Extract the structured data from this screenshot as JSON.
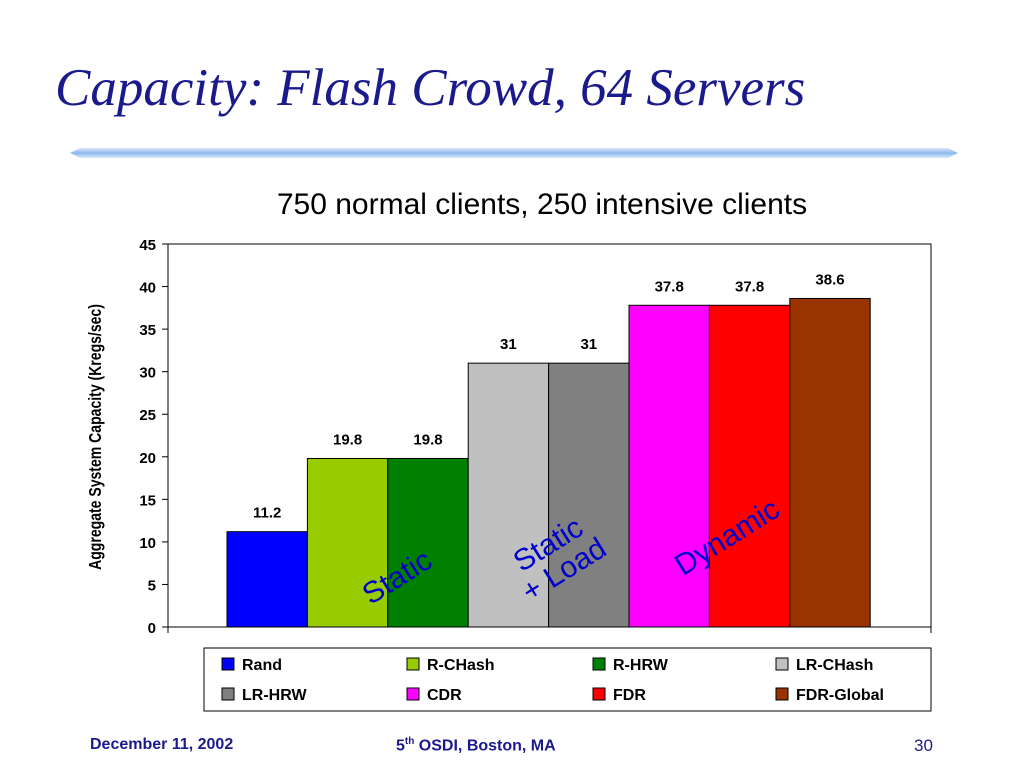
{
  "slide": {
    "title": "Capacity: Flash Crowd, 64 Servers",
    "subtitle": "750 normal clients, 250 intensive clients"
  },
  "chart_data": {
    "type": "bar",
    "ylabel": "Aggregate System Capacity (Kregs/sec)",
    "ylim": [
      0,
      45
    ],
    "yticks": [
      0,
      5,
      10,
      15,
      20,
      25,
      30,
      35,
      40,
      45
    ],
    "categories": [
      "Rand",
      "R-CHash",
      "R-HRW",
      "LR-CHash",
      "LR-HRW",
      "CDR",
      "FDR",
      "FDR-Global"
    ],
    "values": [
      11.2,
      19.8,
      19.8,
      31,
      31,
      37.8,
      37.8,
      38.6
    ],
    "value_labels": [
      "11.2",
      "19.8",
      "19.8",
      "31",
      "31",
      "37.8",
      "37.8",
      "38.6"
    ],
    "colors": [
      "#0000ff",
      "#99cc00",
      "#008000",
      "#c0c0c0",
      "#808080",
      "#ff00ff",
      "#ff0000",
      "#993300"
    ],
    "legend": {
      "placement": "bottom",
      "rows": [
        [
          "Rand",
          "R-CHash",
          "R-HRW",
          "LR-CHash"
        ],
        [
          "LR-HRW",
          "CDR",
          "FDR",
          "FDR-Global"
        ]
      ]
    },
    "annotations": [
      {
        "lines": [
          "Static"
        ],
        "color": "#0000cc"
      },
      {
        "lines": [
          "Static",
          "+ Load"
        ],
        "color": "#0000cc"
      },
      {
        "lines": [
          "Dynamic"
        ],
        "color": "#0000cc"
      }
    ],
    "grid": false
  },
  "footer": {
    "date": "December 11, 2002",
    "event_prefix": "5",
    "event_sup": "th",
    "event_suffix": " OSDI, Boston, MA",
    "page": "30"
  }
}
